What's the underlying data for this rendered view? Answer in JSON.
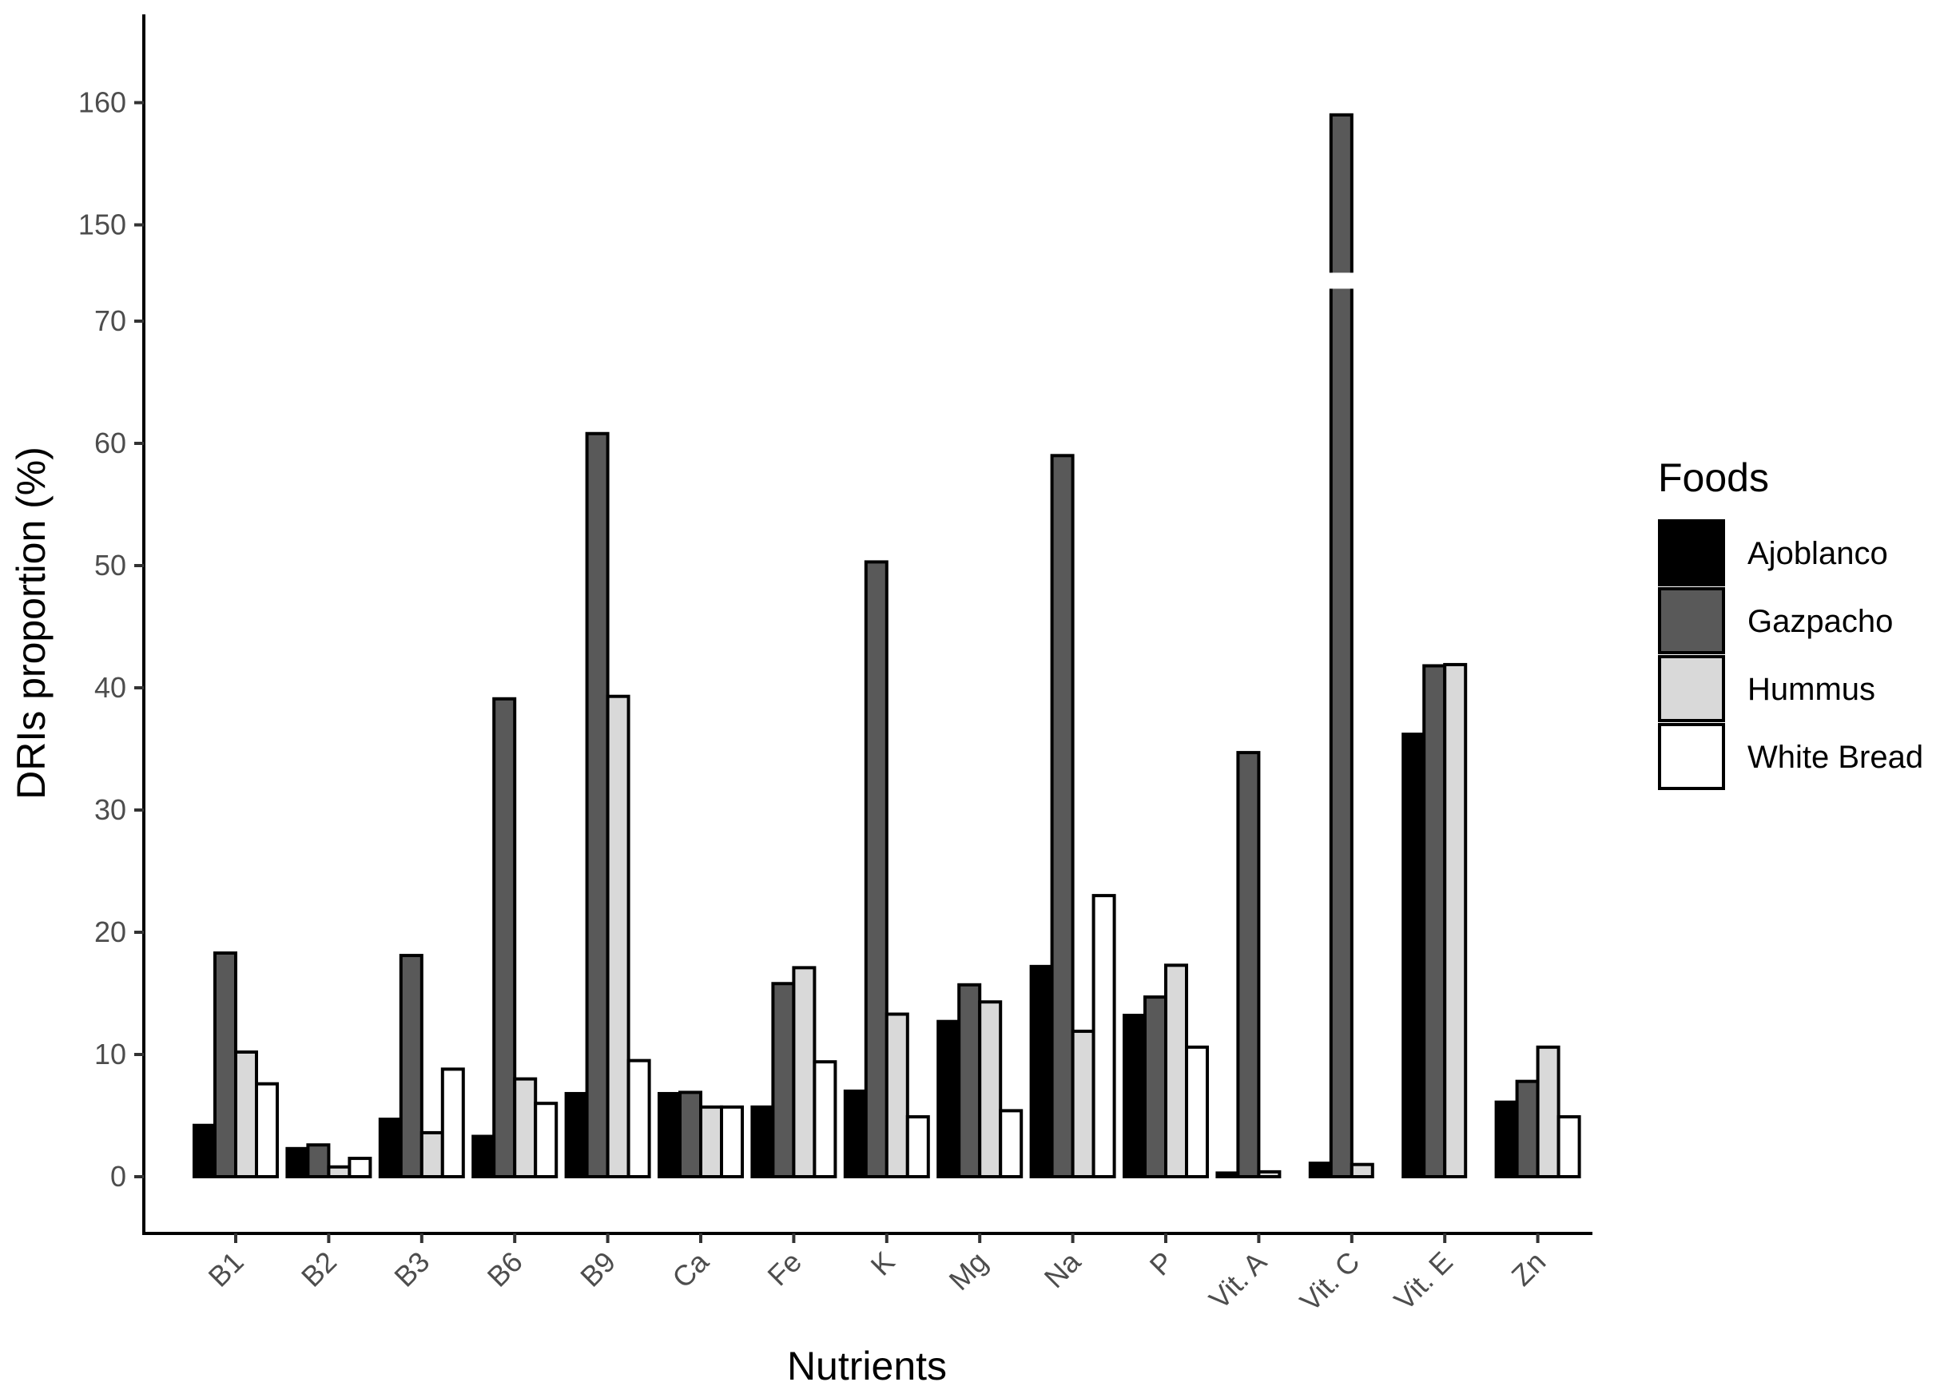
{
  "chart_data": {
    "type": "bar",
    "title": "",
    "xlabel": "Nutrients",
    "ylabel": "DRIs proportion (%)",
    "categories": [
      "B1",
      "B2",
      "B3",
      "B6",
      "B9",
      "Ca",
      "Fe",
      "K",
      "Mg",
      "Na",
      "P",
      "Vit. A",
      "Vit. C",
      "Vit. E",
      "Zn"
    ],
    "y_ticks": [
      "0",
      "10",
      "20",
      "30",
      "40",
      "50",
      "60",
      "70",
      "150",
      "160"
    ],
    "y_axis_break": {
      "from": 72,
      "to": 147
    },
    "ylim": [
      -5,
      165
    ],
    "legend": {
      "title": "Foods",
      "position": "right"
    },
    "series": [
      {
        "name": "Ajoblanco",
        "color": "#000000",
        "values": [
          4.2,
          2.3,
          4.7,
          3.3,
          6.8,
          6.8,
          5.7,
          7.0,
          12.7,
          17.2,
          13.2,
          0.3,
          1.1,
          36.2,
          6.1
        ]
      },
      {
        "name": "Gazpacho",
        "color": "#595959",
        "values": [
          18.3,
          2.6,
          18.1,
          39.1,
          60.8,
          6.9,
          15.8,
          50.3,
          15.7,
          59.0,
          14.7,
          34.7,
          159.0,
          41.8,
          7.8
        ]
      },
      {
        "name": "Hummus",
        "color": "#d9d9d9",
        "values": [
          10.2,
          0.8,
          3.6,
          8.0,
          39.3,
          5.7,
          17.1,
          13.3,
          14.3,
          11.9,
          17.3,
          0.4,
          1.0,
          41.9,
          10.6
        ]
      },
      {
        "name": "White Bread",
        "color": "#ffffff",
        "values": [
          7.6,
          1.5,
          8.8,
          6.0,
          9.5,
          5.7,
          9.4,
          4.9,
          5.4,
          23.0,
          10.6,
          0.0,
          0.0,
          0.0,
          4.9
        ]
      }
    ]
  }
}
